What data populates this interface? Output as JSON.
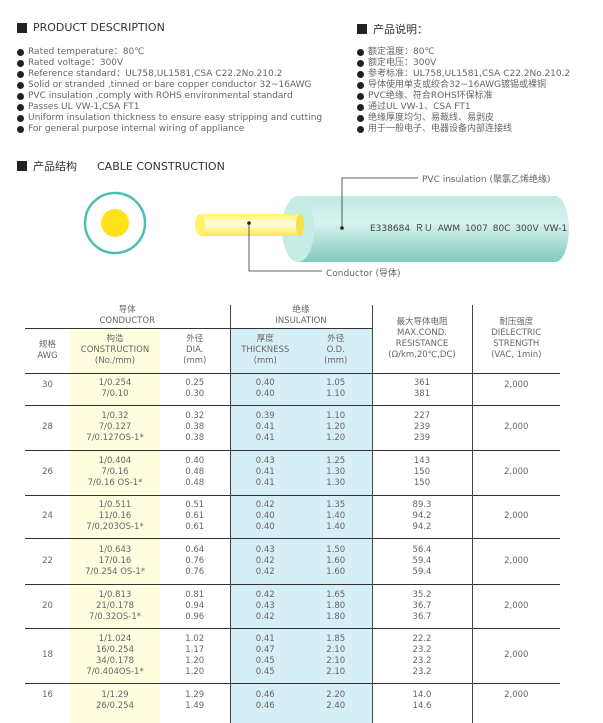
{
  "description": {
    "title": "PRODUCT DESCRIPTION",
    "items": [
      "Rated temperature：80℃",
      "Rated voltage：300V",
      "Reference standard：UL758,UL1581,CSA C22.2No.210.2",
      "Solid or stranded ,tinned or bare copper conductor 32~16AWG",
      "PVC insulation ,comply with ROHS environmental standard",
      "Passes UL VW-1,CSA FT1",
      "Uniform insulation thickness to ensure easy stripping and cutting",
      "For general purpose internal wiring of appliance"
    ]
  },
  "description_cn": {
    "title": "产品说明：",
    "items": [
      "额定温度：80℃",
      "额定电压：300V",
      "参考标准：UL758,UL1581,CSA C22.2No.210.2",
      "导体使用单支或绞合32~16AWG镀锡或裸铜",
      "PVC绝缘、符合ROHS环保标准",
      "通过UL VW-1、CSA FT1",
      "绝缘厚度均匀、易裁线、易剥皮",
      "用于一般电子、电器设备内部连接线"
    ]
  },
  "construction": {
    "title_cn": "产品结构",
    "title": "CABLE CONSTRUCTION",
    "insulation_label": "PVC insulation (聚氯乙烯绝缘)",
    "conductor_label": "Conductor (导体)",
    "cable_print": "E338684 ＲＵ AWM 1007 80C 300V VW-1",
    "colors": {
      "insulation": "#8fd3c9",
      "conductor": "#ffe21a",
      "ring": "#4dbfae"
    }
  },
  "table": {
    "group_conductor": [
      "导体",
      "CONDUCTOR"
    ],
    "group_insulation": [
      "绝缘",
      "INSULATION"
    ],
    "headers": {
      "awg": [
        "规格",
        "AWG"
      ],
      "construction": [
        "构造",
        "CONSTRUCTION",
        "(No./mm)"
      ],
      "dia": [
        "外径",
        "DIA.",
        "(mm)"
      ],
      "thickness": [
        "厚度",
        "THICKNESS",
        "(mm)"
      ],
      "od": [
        "外径",
        "O.D.",
        "(mm)"
      ],
      "resistance": [
        "最大导体电阻",
        "MAX.COND.",
        "RESISTANCE",
        "(Ω/km,20℃,DC)"
      ],
      "dielectric": [
        "耐压强度",
        "DIELECTRIC",
        "STRENGTH",
        "(VAC, 1min)"
      ]
    },
    "rows": [
      {
        "awg": "30",
        "construction": [
          "1/0.254",
          "7/0.10"
        ],
        "dia": [
          "0.25",
          "0.30"
        ],
        "thickness": [
          "0.40",
          "0.40"
        ],
        "od": [
          "1.05",
          "1.10"
        ],
        "resistance": [
          "361",
          "381"
        ],
        "dielectric": "2,000"
      },
      {
        "awg": "28",
        "construction": [
          "1/0.32",
          "7/0.127",
          "7/0.127OS-1*"
        ],
        "dia": [
          "0.32",
          "0.38",
          "0.38"
        ],
        "thickness": [
          "0.39",
          "0.41",
          "0.41"
        ],
        "od": [
          "1.10",
          "1.20",
          "1.20"
        ],
        "resistance": [
          "227",
          "239",
          "239"
        ],
        "dielectric": "2,000"
      },
      {
        "awg": "26",
        "construction": [
          "1/0.404",
          "7/0.16",
          "7/0.16 OS-1*"
        ],
        "dia": [
          "0.40",
          "0.48",
          "0.48"
        ],
        "thickness": [
          "0.43",
          "0.41",
          "0.41"
        ],
        "od": [
          "1.25",
          "1.30",
          "1.30"
        ],
        "resistance": [
          "143",
          "150",
          "150"
        ],
        "dielectric": "2,000"
      },
      {
        "awg": "24",
        "construction": [
          "1/0.511",
          "11/0.16",
          "7/0.203OS-1*"
        ],
        "dia": [
          "0.51",
          "0.61",
          "0.61"
        ],
        "thickness": [
          "0.42",
          "0.40",
          "0.40"
        ],
        "od": [
          "1.35",
          "1.40",
          "1.40"
        ],
        "resistance": [
          "89.3",
          "94.2",
          "94.2"
        ],
        "dielectric": "2,000"
      },
      {
        "awg": "22",
        "construction": [
          "1/0.643",
          "17/0.16",
          "7/0.254 OS-1*"
        ],
        "dia": [
          "0.64",
          "0.76",
          "0.76"
        ],
        "thickness": [
          "0.43",
          "0.42",
          "0.42"
        ],
        "od": [
          "1.50",
          "1.60",
          "1.60"
        ],
        "resistance": [
          "56.4",
          "59.4",
          "59.4"
        ],
        "dielectric": "2,000"
      },
      {
        "awg": "20",
        "construction": [
          "1/0.813",
          "21/0.178",
          "7/0.32OS-1*"
        ],
        "dia": [
          "0.81",
          "0.94",
          "0.96"
        ],
        "thickness": [
          "0.42",
          "0.43",
          "0.42"
        ],
        "od": [
          "1.65",
          "1.80",
          "1.80"
        ],
        "resistance": [
          "35.2",
          "36.7",
          "36.7"
        ],
        "dielectric": "2,000"
      },
      {
        "awg": "18",
        "construction": [
          "1/1.024",
          "16/0.254",
          "34/0.178",
          "7/0.404OS-1*"
        ],
        "dia": [
          "1.02",
          "1.17",
          "1.20",
          "1.20"
        ],
        "thickness": [
          "0.41",
          "0.47",
          "0.45",
          "0.45"
        ],
        "od": [
          "1.85",
          "2.10",
          "2.10",
          "2.10"
        ],
        "resistance": [
          "22.2",
          "23.2",
          "23.2",
          "23.2"
        ],
        "dielectric": "2,000"
      },
      {
        "awg": "16",
        "construction": [
          "1/1.29",
          "26/0.254"
        ],
        "dia": [
          "1.29",
          "1.49"
        ],
        "thickness": [
          "0.46",
          "0.46"
        ],
        "od": [
          "2.20",
          "2.40"
        ],
        "resistance": [
          "14.0",
          "14.6"
        ],
        "dielectric": "2,000"
      }
    ]
  }
}
